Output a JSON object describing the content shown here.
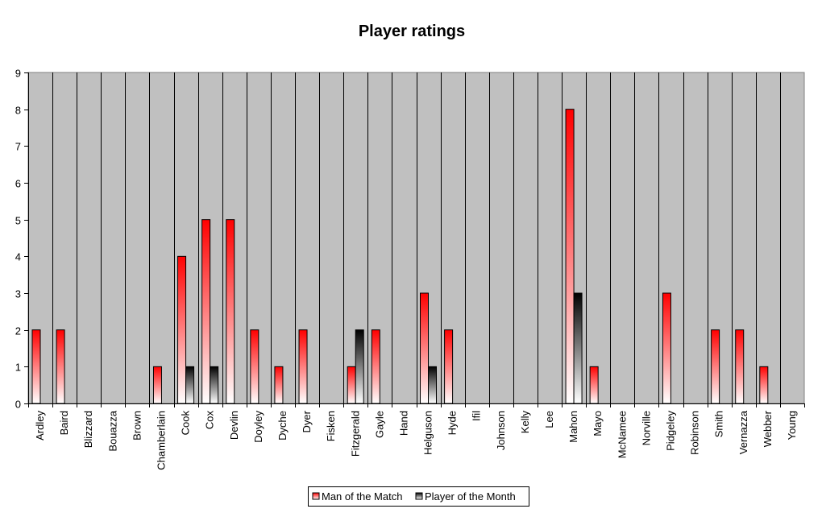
{
  "chart_data": {
    "type": "bar",
    "title": "Player ratings",
    "xlabel": "",
    "ylabel": "",
    "ylim": [
      0,
      9
    ],
    "yticks": [
      0,
      1,
      2,
      3,
      4,
      5,
      6,
      7,
      8,
      9
    ],
    "grid": "vertical category dividers",
    "legend_position": "bottom",
    "categories": [
      "Ardley",
      "Baird",
      "Blizzard",
      "Bouazza",
      "Brown",
      "Chamberlain",
      "Cook",
      "Cox",
      "Devlin",
      "Doyley",
      "Dyche",
      "Dyer",
      "Fisken",
      "Fitzgerald",
      "Gayle",
      "Hand",
      "Helguson",
      "Hyde",
      "Ifil",
      "Johnson",
      "Kelly",
      "Lee",
      "Mahon",
      "Mayo",
      "McNamee",
      "Norville",
      "Pidgeley",
      "Robinson",
      "Smith",
      "Vernazza",
      "Webber",
      "Young"
    ],
    "series": [
      {
        "name": "Man of the Match",
        "color": "#ff0000",
        "values": [
          2,
          2,
          0,
          0,
          0,
          1,
          4,
          5,
          5,
          2,
          1,
          2,
          0,
          1,
          2,
          0,
          3,
          2,
          0,
          0,
          0,
          0,
          8,
          1,
          0,
          0,
          3,
          0,
          2,
          2,
          1,
          0
        ]
      },
      {
        "name": "Player of the Month",
        "color": "#000000",
        "values": [
          0,
          0,
          0,
          0,
          0,
          0,
          1,
          1,
          0,
          0,
          0,
          0,
          0,
          2,
          0,
          0,
          1,
          0,
          0,
          0,
          0,
          0,
          3,
          0,
          0,
          0,
          0,
          0,
          0,
          0,
          0,
          0
        ]
      }
    ]
  }
}
